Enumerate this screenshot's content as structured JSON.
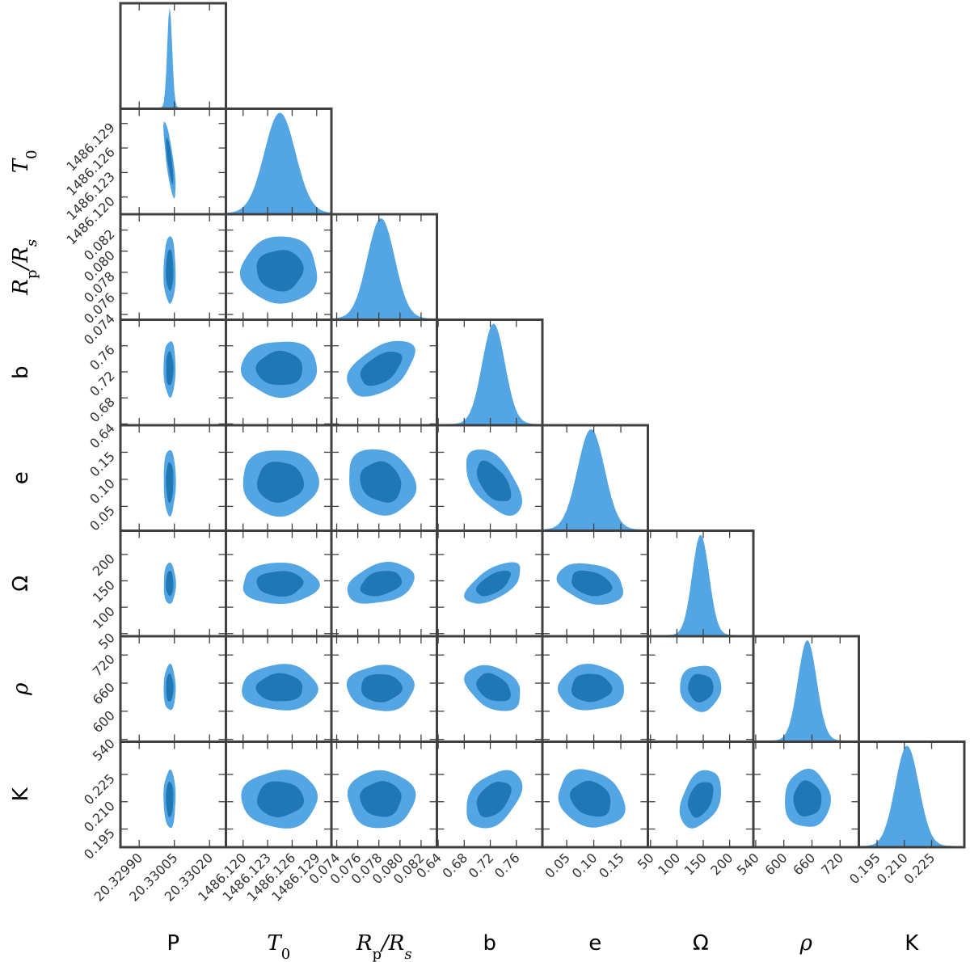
{
  "chart_data": {
    "type": "corner",
    "title": "",
    "colors": {
      "outer": "#53a5e3",
      "inner": "#2077b6",
      "hist": "#53a5e3",
      "frame": "#404040"
    },
    "parameters": [
      {
        "key": "P",
        "label": "P",
        "italic": false,
        "mean": 20.33003,
        "sd": 1.05e-05,
        "range": [
          20.32982,
          20.33027
        ],
        "ticks": [
          20.3299,
          20.33005,
          20.3302
        ],
        "tick_labels": [
          "20.32990",
          "20.33005",
          "20.33020"
        ]
      },
      {
        "key": "T0",
        "label": "T",
        "sub": "0",
        "italic": true,
        "mean": 1486.1245,
        "sd": 0.0019,
        "range": [
          1486.1179,
          1486.1308
        ],
        "ticks": [
          1486.12,
          1486.123,
          1486.126,
          1486.129
        ],
        "tick_labels": [
          "1486.120",
          "1486.123",
          "1486.126",
          "1486.129"
        ]
      },
      {
        "key": "RpRs",
        "label": "R",
        "sub": "p",
        "label2": "/R",
        "sub2": "s",
        "italic": true,
        "mean": 0.0782,
        "sd": 0.0013,
        "range": [
          0.0735,
          0.0835
        ],
        "ticks": [
          0.074,
          0.076,
          0.078,
          0.08,
          0.082
        ],
        "tick_labels": [
          "0.074",
          "0.076",
          "0.078",
          "0.080",
          "0.082"
        ]
      },
      {
        "key": "b",
        "label": "b",
        "italic": false,
        "mean": 0.725,
        "sd": 0.0175,
        "range": [
          0.638,
          0.8
        ],
        "ticks": [
          0.64,
          0.68,
          0.72,
          0.76
        ],
        "tick_labels": [
          "0.64",
          "0.68",
          "0.72",
          "0.76"
        ]
      },
      {
        "key": "e",
        "label": "e",
        "italic": false,
        "mean": 0.095,
        "sd": 0.025,
        "range": [
          0.005,
          0.2
        ],
        "ticks": [
          0.05,
          0.1,
          0.15
        ],
        "tick_labels": [
          "0.05",
          "0.10",
          "0.15"
        ]
      },
      {
        "key": "Omega",
        "label": "Ω",
        "italic": false,
        "mean": 145,
        "sd": 16,
        "range": [
          45,
          245
        ],
        "ticks": [
          50,
          100,
          150,
          200
        ],
        "tick_labels": [
          "50",
          "100",
          "150",
          "200"
        ]
      },
      {
        "key": "rho",
        "label": "ρ",
        "italic": true,
        "mean": 650,
        "sd": 20,
        "range": [
          535,
          760
        ],
        "ticks": [
          540,
          600,
          660,
          720
        ],
        "tick_labels": [
          "540",
          "600",
          "660",
          "720"
        ]
      },
      {
        "key": "K",
        "label": "K",
        "italic": false,
        "mean": 0.2115,
        "sd": 0.0065,
        "range": [
          0.185,
          0.243
        ],
        "ticks": [
          0.195,
          0.21,
          0.225
        ],
        "tick_labels": [
          "0.195",
          "0.210",
          "0.225"
        ]
      }
    ],
    "correlations": [
      {
        "x": "P",
        "y": "T0",
        "rho": -0.8
      },
      {
        "x": "RpRs",
        "y": "b",
        "rho": 0.5
      },
      {
        "x": "b",
        "y": "e",
        "rho": -0.55
      },
      {
        "x": "b",
        "y": "Omega",
        "rho": 0.6
      },
      {
        "x": "e",
        "y": "Omega",
        "rho": -0.3
      },
      {
        "x": "b",
        "y": "rho",
        "rho": -0.35
      },
      {
        "x": "b",
        "y": "K",
        "rho": 0.4
      },
      {
        "x": "Omega",
        "y": "K",
        "rho": 0.35
      },
      {
        "x": "RpRs",
        "y": "Omega",
        "rho": 0.3
      },
      {
        "x": "e",
        "y": "K",
        "rho": -0.2
      },
      {
        "x": "RpRs",
        "y": "e",
        "rho": -0.15
      }
    ],
    "contour_levels": [
      "68%",
      "95%"
    ]
  }
}
